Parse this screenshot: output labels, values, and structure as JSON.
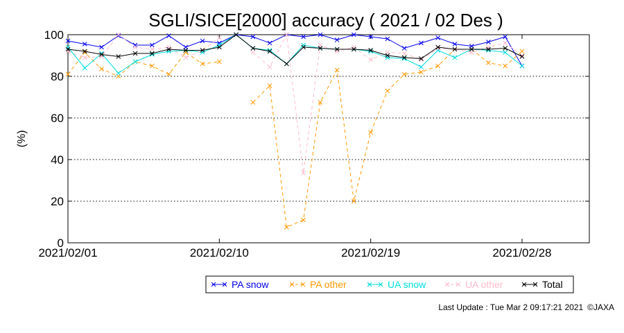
{
  "chart_data": {
    "type": "line",
    "title": "SGLI/SICE[2000] accuracy ( 2021 / 02 Des )",
    "ylabel": "(%)",
    "xlabel": "",
    "ylim": [
      0,
      100
    ],
    "yticks": [
      0,
      20,
      40,
      60,
      80,
      100
    ],
    "xlim": [
      "2021/02/01",
      "2021/03/04"
    ],
    "xticks": [
      "2021/02/01",
      "2021/02/10",
      "2021/02/19",
      "2021/02/28"
    ],
    "grid": "horizontal dotted at 20, 40, 60, 80",
    "legend_position": "bottom-right",
    "series": [
      {
        "name": "PA snow",
        "color": "#0000ee",
        "dash": "solid",
        "x": [
          "2021/02/01",
          "2021/02/02",
          "2021/02/03",
          "2021/02/04",
          "2021/02/05",
          "2021/02/06",
          "2021/02/07",
          "2021/02/08",
          "2021/02/09",
          "2021/02/10",
          "2021/02/11",
          "2021/02/12",
          "2021/02/13",
          "2021/02/14",
          "2021/02/15",
          "2021/02/16",
          "2021/02/17",
          "2021/02/18",
          "2021/02/19",
          "2021/02/20",
          "2021/02/21",
          "2021/02/22",
          "2021/02/23",
          "2021/02/24",
          "2021/02/25",
          "2021/02/26",
          "2021/02/27",
          "2021/02/28"
        ],
        "values": [
          97,
          95.5,
          94,
          99.5,
          95,
          95,
          99.5,
          94,
          97,
          96,
          100,
          99,
          96,
          100,
          99,
          100,
          97.5,
          100,
          99,
          98,
          93.5,
          96,
          98.5,
          95.5,
          94.5,
          96.5,
          99,
          85
        ]
      },
      {
        "name": "PA other",
        "color": "#ff9900",
        "dash": "dashed",
        "x": [
          "2021/02/01",
          "2021/02/02",
          "2021/02/03",
          "2021/02/04",
          "2021/02/05",
          "2021/02/06",
          "2021/02/07",
          "2021/02/08",
          "2021/02/09",
          "2021/02/10",
          "2021/02/11",
          "2021/02/12",
          "2021/02/13",
          "2021/02/14",
          "2021/02/15",
          "2021/02/16",
          "2021/02/17",
          "2021/02/18",
          "2021/02/19",
          "2021/02/20",
          "2021/02/21",
          "2021/02/22",
          "2021/02/23",
          "2021/02/24",
          "2021/02/25",
          "2021/02/26",
          "2021/02/27",
          "2021/02/28"
        ],
        "values": [
          81,
          91.5,
          83.5,
          80,
          87,
          85,
          81,
          91.5,
          86,
          87,
          null,
          67.5,
          75.5,
          7.5,
          11,
          67.5,
          83,
          20,
          53,
          73,
          81,
          82,
          85,
          93,
          93,
          86.5,
          85,
          92
        ]
      },
      {
        "name": "UA snow",
        "color": "#00dddd",
        "dash": "solid",
        "x": [
          "2021/02/01",
          "2021/02/02",
          "2021/02/03",
          "2021/02/04",
          "2021/02/05",
          "2021/02/06",
          "2021/02/07",
          "2021/02/08",
          "2021/02/09",
          "2021/02/10",
          "2021/02/11",
          "2021/02/12",
          "2021/02/13",
          "2021/02/14",
          "2021/02/15",
          "2021/02/16",
          "2021/02/17",
          "2021/02/18",
          "2021/02/19",
          "2021/02/20",
          "2021/02/21",
          "2021/02/22",
          "2021/02/23",
          "2021/02/24",
          "2021/02/25",
          "2021/02/26",
          "2021/02/27",
          "2021/02/28"
        ],
        "values": [
          94,
          84,
          91,
          81.5,
          87,
          90.5,
          92,
          92.5,
          91.5,
          95,
          100,
          93.5,
          92.5,
          86,
          95,
          93.5,
          93,
          93,
          92,
          89,
          88.5,
          84.5,
          92.5,
          89,
          93,
          92.5,
          91.5,
          85
        ]
      },
      {
        "name": "UA other",
        "color": "#ffbbcc",
        "dash": "dashed",
        "x": [
          "2021/02/01",
          "2021/02/02",
          "2021/02/03",
          "2021/02/04",
          "2021/02/05",
          "2021/02/06",
          "2021/02/07",
          "2021/02/08",
          "2021/02/09",
          "2021/02/10",
          "2021/02/11",
          "2021/02/12",
          "2021/02/13",
          "2021/02/14",
          "2021/02/15",
          "2021/02/16",
          "2021/02/17",
          "2021/02/18",
          "2021/02/19",
          "2021/02/20",
          "2021/02/21",
          "2021/02/22",
          "2021/02/23",
          "2021/02/24",
          "2021/02/25",
          "2021/02/26",
          "2021/02/27",
          "2021/02/28"
        ],
        "values": [
          92,
          89,
          89.5,
          100,
          94,
          93,
          94,
          89,
          92.5,
          98.5,
          null,
          91.5,
          84.5,
          100,
          33.5,
          95,
          92,
          94,
          88,
          91.5,
          91,
          88,
          93.5,
          93,
          91.5,
          94,
          96,
          90
        ]
      },
      {
        "name": "Total",
        "color": "#000000",
        "dash": "solid",
        "x": [
          "2021/02/01",
          "2021/02/02",
          "2021/02/03",
          "2021/02/04",
          "2021/02/05",
          "2021/02/06",
          "2021/02/07",
          "2021/02/08",
          "2021/02/09",
          "2021/02/10",
          "2021/02/11",
          "2021/02/12",
          "2021/02/13",
          "2021/02/14",
          "2021/02/15",
          "2021/02/16",
          "2021/02/17",
          "2021/02/18",
          "2021/02/19",
          "2021/02/20",
          "2021/02/21",
          "2021/02/22",
          "2021/02/23",
          "2021/02/24",
          "2021/02/25",
          "2021/02/26",
          "2021/02/27",
          "2021/02/28"
        ],
        "values": [
          93,
          92,
          90.5,
          89.5,
          91,
          91,
          93,
          92.5,
          92.5,
          94,
          100,
          93.5,
          92,
          86,
          94,
          93.5,
          93,
          93,
          92.5,
          90,
          89,
          88.5,
          94,
          93,
          93,
          93,
          93.5,
          89.5
        ]
      }
    ]
  },
  "footer": {
    "last_update": "Last Update : Tue Mar  2 09:17:21 2021",
    "copyright": "©JAXA"
  }
}
